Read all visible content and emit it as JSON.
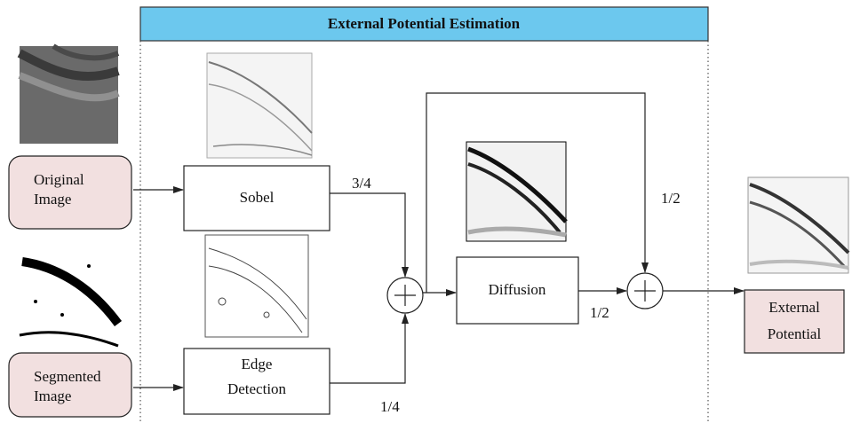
{
  "title": "External Potential Estimation",
  "nodes": [
    {
      "lines": [
        "Original",
        "Image"
      ]
    },
    {
      "lines": [
        "Segmented",
        "Image"
      ]
    },
    {
      "lines": [
        "Sobel"
      ]
    },
    {
      "lines": [
        "Edge",
        "Detection"
      ]
    },
    {
      "lines": [
        "Diffusion"
      ]
    },
    {
      "lines": [
        "External",
        "Potential"
      ]
    }
  ],
  "edge_labels": [
    "3/4",
    "1/4",
    "1/2",
    "1/2"
  ]
}
